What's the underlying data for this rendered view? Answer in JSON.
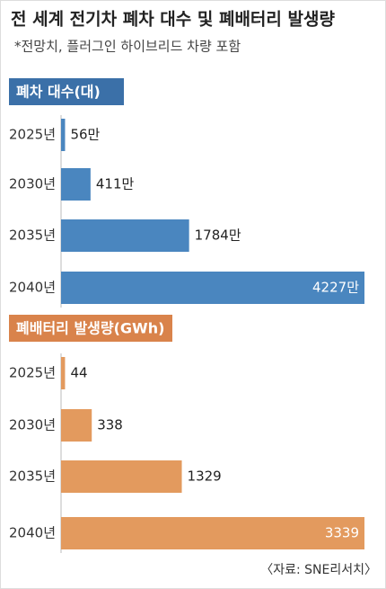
{
  "title": "전 세계 전기차 폐차 대수 및 폐배터리 발생량",
  "subtitle": "*전망치, 플러그인 하이브리드 차량 포함",
  "source": "〈자료: SNE리서치〉",
  "chart_data": [
    {
      "type": "bar",
      "orientation": "horizontal",
      "title": "폐차 대수(대)",
      "categories": [
        "2025년",
        "2030년",
        "2035년",
        "2040년"
      ],
      "values": [
        56,
        411,
        1784,
        4227
      ],
      "value_labels": [
        "56만",
        "411만",
        "1784만",
        "4227만"
      ],
      "color": "#4a86bf",
      "header_color": "#3b70a8"
    },
    {
      "type": "bar",
      "orientation": "horizontal",
      "title": "폐배터리 발생량(GWh)",
      "categories": [
        "2025년",
        "2030년",
        "2035년",
        "2040년"
      ],
      "values": [
        44,
        338,
        1329,
        3339
      ],
      "color": "#e39a5e",
      "header_color": "#d9834b"
    }
  ]
}
